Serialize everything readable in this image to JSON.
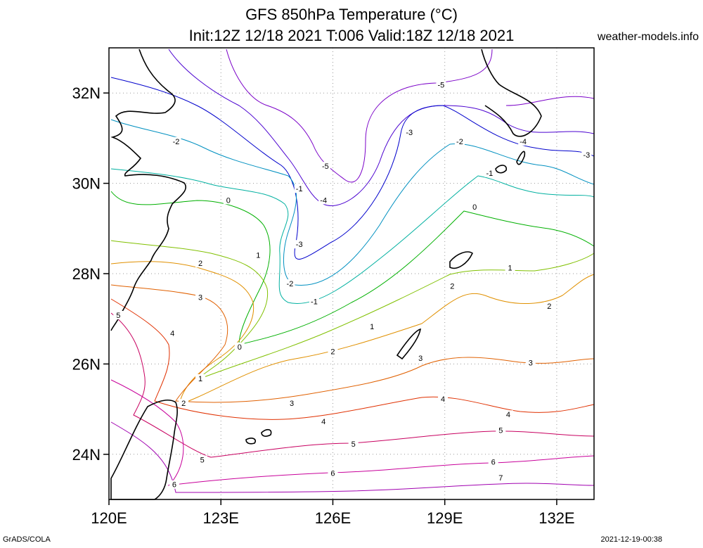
{
  "title_line1": "GFS 850hPa Temperature (°C)",
  "title_line2": "Init:12Z 12/18 2021 T:006 Valid:18Z 12/18 2021",
  "site": "weather-models.info",
  "footer_left": "GrADS/COLA",
  "footer_right": "2021-12-19-00:38",
  "map": {
    "lon_range": [
      120,
      133
    ],
    "lat_range": [
      23,
      33
    ],
    "lat_ticks": [
      {
        "lat": 32,
        "label": "32N"
      },
      {
        "lat": 30,
        "label": "30N"
      },
      {
        "lat": 28,
        "label": "28N"
      },
      {
        "lat": 26,
        "label": "26N"
      },
      {
        "lat": 24,
        "label": "24N"
      }
    ],
    "lon_ticks": [
      {
        "lon": 120,
        "label": "120E"
      },
      {
        "lon": 123,
        "label": "123E"
      },
      {
        "lon": 126,
        "label": "126E"
      },
      {
        "lon": 129,
        "label": "129E"
      },
      {
        "lon": 132,
        "label": "132E"
      }
    ],
    "contour_labels": [
      {
        "text": "-5",
        "lon": 128.9,
        "lat": 32.15,
        "color": "#7a00c8"
      },
      {
        "text": "-3",
        "lon": 128.05,
        "lat": 31.1,
        "color": "#0000cc"
      },
      {
        "text": "-2",
        "lon": 121.8,
        "lat": 30.9,
        "color": "#0090c0"
      },
      {
        "text": "-4",
        "lon": 131.1,
        "lat": 30.9,
        "color": "#4a00d0"
      },
      {
        "text": "-3",
        "lon": 132.8,
        "lat": 30.6,
        "color": "#0000cc"
      },
      {
        "text": "-2",
        "lon": 129.4,
        "lat": 30.9,
        "color": "#0090c0"
      },
      {
        "text": "-5",
        "lon": 125.8,
        "lat": 30.35,
        "color": "#7a00c8"
      },
      {
        "text": "-1",
        "lon": 130.2,
        "lat": 30.2,
        "color": "#00b0a0"
      },
      {
        "text": "-1",
        "lon": 125.1,
        "lat": 29.85,
        "color": "#00b0a0"
      },
      {
        "text": "-4",
        "lon": 125.75,
        "lat": 29.6,
        "color": "#4a00d0"
      },
      {
        "text": "0",
        "lon": 123.2,
        "lat": 29.6,
        "color": "#00b000"
      },
      {
        "text": "0",
        "lon": 129.8,
        "lat": 29.45,
        "color": "#00b000"
      },
      {
        "text": "-3",
        "lon": 125.1,
        "lat": 28.62,
        "color": "#0000cc"
      },
      {
        "text": "1",
        "lon": 124.0,
        "lat": 28.38,
        "color": "#80c000"
      },
      {
        "text": "2",
        "lon": 122.45,
        "lat": 28.2,
        "color": "#e09000"
      },
      {
        "text": "1",
        "lon": 130.75,
        "lat": 28.1,
        "color": "#80c000"
      },
      {
        "text": "-2",
        "lon": 124.85,
        "lat": 27.75,
        "color": "#0090c0"
      },
      {
        "text": "2",
        "lon": 129.2,
        "lat": 27.7,
        "color": "#e09000"
      },
      {
        "text": "3",
        "lon": 122.45,
        "lat": 27.45,
        "color": "#e06000"
      },
      {
        "text": "-1",
        "lon": 125.5,
        "lat": 27.35,
        "color": "#00b0a0"
      },
      {
        "text": "2",
        "lon": 131.8,
        "lat": 27.25,
        "color": "#e09000"
      },
      {
        "text": "5",
        "lon": 120.25,
        "lat": 27.05,
        "color": "#c80060"
      },
      {
        "text": "1",
        "lon": 127.05,
        "lat": 26.8,
        "color": "#80c000"
      },
      {
        "text": "4",
        "lon": 121.7,
        "lat": 26.65,
        "color": "#e03000"
      },
      {
        "text": "0",
        "lon": 123.5,
        "lat": 26.35,
        "color": "#00b000"
      },
      {
        "text": "2",
        "lon": 126.0,
        "lat": 26.25,
        "color": "#e09000"
      },
      {
        "text": "3",
        "lon": 128.35,
        "lat": 26.1,
        "color": "#e06000"
      },
      {
        "text": "3",
        "lon": 131.3,
        "lat": 26.0,
        "color": "#e06000"
      },
      {
        "text": "1",
        "lon": 122.45,
        "lat": 25.65,
        "color": "#80c000"
      },
      {
        "text": "2",
        "lon": 122.0,
        "lat": 25.1,
        "color": "#e09000"
      },
      {
        "text": "3",
        "lon": 124.9,
        "lat": 25.1,
        "color": "#e06000"
      },
      {
        "text": "4",
        "lon": 128.95,
        "lat": 25.2,
        "color": "#e03000"
      },
      {
        "text": "4",
        "lon": 130.7,
        "lat": 24.85,
        "color": "#e03000"
      },
      {
        "text": "4",
        "lon": 125.75,
        "lat": 24.7,
        "color": "#e03000"
      },
      {
        "text": "5",
        "lon": 130.5,
        "lat": 24.5,
        "color": "#c80060"
      },
      {
        "text": "5",
        "lon": 126.55,
        "lat": 24.2,
        "color": "#c80060"
      },
      {
        "text": "5",
        "lon": 122.5,
        "lat": 23.85,
        "color": "#c80060"
      },
      {
        "text": "6",
        "lon": 130.3,
        "lat": 23.8,
        "color": "#c8009a"
      },
      {
        "text": "6",
        "lon": 126.0,
        "lat": 23.55,
        "color": "#c8009a"
      },
      {
        "text": "6",
        "lon": 121.75,
        "lat": 23.3,
        "color": "#c8009a"
      },
      {
        "text": "7",
        "lon": 130.5,
        "lat": 23.45,
        "color": "#a000b0"
      }
    ]
  }
}
